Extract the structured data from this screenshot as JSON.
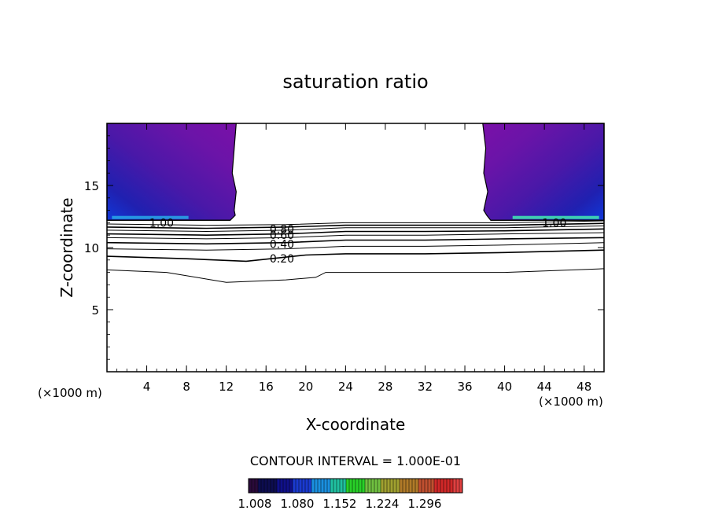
{
  "chart_data": {
    "type": "contour",
    "title": "saturation ratio",
    "xlabel": "X-coordinate",
    "ylabel": "Z-coordinate",
    "x_unit_left": "(×1000 m)",
    "x_unit_right": "(×1000 m)",
    "xlim": [
      0,
      50
    ],
    "ylim": [
      0,
      20
    ],
    "x_ticks": [
      "4",
      "8",
      "12",
      "16",
      "20",
      "24",
      "28",
      "32",
      "36",
      "40",
      "44",
      "48"
    ],
    "y_ticks": [
      "5",
      "10",
      "15"
    ],
    "contour_interval_label": "CONTOUR INTERVAL = 1.000E-01",
    "contour_labels": [
      {
        "text": "1.00",
        "x": 5.5,
        "z": 12.0
      },
      {
        "text": "0.80",
        "x": 17.6,
        "z": 11.5
      },
      {
        "text": "0.60",
        "x": 17.6,
        "z": 11.0
      },
      {
        "text": "0.40",
        "x": 17.6,
        "z": 10.3
      },
      {
        "text": "0.20",
        "x": 17.6,
        "z": 9.1
      },
      {
        "text": "1.00",
        "x": 45.0,
        "z": 12.0
      }
    ],
    "contours": [
      {
        "level": 0.1,
        "points": [
          [
            0,
            8.2
          ],
          [
            6,
            8.0
          ],
          [
            12,
            7.2
          ],
          [
            18,
            7.4
          ],
          [
            21,
            7.6
          ],
          [
            22,
            8.0
          ],
          [
            30,
            8.0
          ],
          [
            40,
            8.0
          ],
          [
            50,
            8.3
          ]
        ]
      },
      {
        "level": 0.2,
        "points": [
          [
            0,
            9.3
          ],
          [
            8,
            9.1
          ],
          [
            14,
            8.9
          ],
          [
            20,
            9.4
          ],
          [
            24,
            9.5
          ],
          [
            32,
            9.5
          ],
          [
            40,
            9.6
          ],
          [
            50,
            9.8
          ]
        ]
      },
      {
        "level": 0.3,
        "points": [
          [
            0,
            9.9
          ],
          [
            10,
            9.8
          ],
          [
            18,
            9.9
          ],
          [
            24,
            10.1
          ],
          [
            32,
            10.1
          ],
          [
            40,
            10.2
          ],
          [
            50,
            10.4
          ]
        ]
      },
      {
        "level": 0.4,
        "points": [
          [
            0,
            10.4
          ],
          [
            10,
            10.3
          ],
          [
            18,
            10.4
          ],
          [
            24,
            10.6
          ],
          [
            32,
            10.6
          ],
          [
            40,
            10.7
          ],
          [
            50,
            10.8
          ]
        ]
      },
      {
        "level": 0.5,
        "points": [
          [
            0,
            10.8
          ],
          [
            10,
            10.7
          ],
          [
            18,
            10.8
          ],
          [
            24,
            11.0
          ],
          [
            32,
            11.0
          ],
          [
            40,
            11.1
          ],
          [
            50,
            11.2
          ]
        ]
      },
      {
        "level": 0.6,
        "points": [
          [
            0,
            11.1
          ],
          [
            10,
            11.0
          ],
          [
            18,
            11.1
          ],
          [
            24,
            11.3
          ],
          [
            32,
            11.3
          ],
          [
            40,
            11.35
          ],
          [
            50,
            11.5
          ]
        ]
      },
      {
        "level": 0.7,
        "points": [
          [
            0,
            11.4
          ],
          [
            10,
            11.3
          ],
          [
            18,
            11.4
          ],
          [
            24,
            11.6
          ],
          [
            32,
            11.6
          ],
          [
            40,
            11.6
          ],
          [
            50,
            11.75
          ]
        ]
      },
      {
        "level": 0.8,
        "points": [
          [
            0,
            11.65
          ],
          [
            10,
            11.55
          ],
          [
            18,
            11.65
          ],
          [
            24,
            11.8
          ],
          [
            32,
            11.8
          ],
          [
            40,
            11.8
          ],
          [
            50,
            11.95
          ]
        ]
      },
      {
        "level": 0.9,
        "points": [
          [
            0,
            11.9
          ],
          [
            10,
            11.8
          ],
          [
            18,
            11.85
          ],
          [
            24,
            12.0
          ],
          [
            32,
            12.0
          ],
          [
            40,
            12.0
          ],
          [
            50,
            12.15
          ]
        ]
      }
    ],
    "supersat_regions": [
      {
        "boundary_x": [
          13.0,
          12.8,
          12.6,
          13.0,
          12.8,
          12.9,
          12.4
        ],
        "boundary_z": [
          20,
          18,
          16,
          14.5,
          13,
          12.6,
          12.2
        ],
        "side": "left"
      },
      {
        "boundary_x": [
          37.8,
          38.1,
          37.9,
          38.3,
          37.9,
          38.2,
          38.6
        ],
        "boundary_z": [
          20,
          18,
          16,
          14.5,
          13,
          12.6,
          12.2
        ],
        "side": "right"
      }
    ],
    "colorbar": {
      "ticks": [
        "1.008",
        "1.080",
        "1.152",
        "1.224",
        "1.296"
      ],
      "colors": [
        "#2a0a3a",
        "#0d0d50",
        "#10108a",
        "#1a3ad0",
        "#1a90e0",
        "#20c0a0",
        "#28d028",
        "#70c040",
        "#a0a030",
        "#b07a28",
        "#c05030",
        "#d02828",
        "#e04040"
      ]
    },
    "grid": false,
    "legend": "bottom-center"
  }
}
